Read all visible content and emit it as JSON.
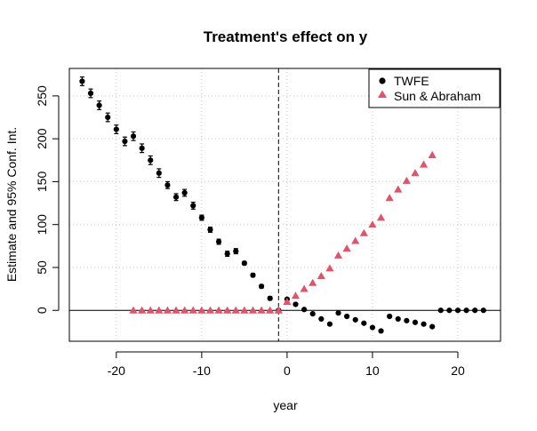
{
  "chart_data": {
    "type": "scatter",
    "title": "Treatment's effect on y",
    "xlabel": "year",
    "ylabel": "Estimate and 95% Conf. Int.",
    "xlim": [
      -25.5,
      25.0
    ],
    "ylim": [
      -36,
      282
    ],
    "x_ticks": [
      -20,
      -10,
      0,
      10,
      20
    ],
    "x_tick_labels": [
      "-20",
      "-10",
      "0",
      "10",
      "20"
    ],
    "y_ticks": [
      0,
      50,
      100,
      150,
      200,
      250
    ],
    "y_tick_labels": [
      "0",
      "50",
      "100",
      "150",
      "200",
      "250"
    ],
    "grid": true,
    "reference_vline": -1,
    "reference_hline": 0,
    "legend_position": "top-right",
    "series": [
      {
        "name": "TWFE",
        "marker": "circle",
        "color": "#000000",
        "points": [
          {
            "x": -24,
            "y": 267,
            "lo": 262,
            "hi": 272
          },
          {
            "x": -23,
            "y": 253,
            "lo": 248,
            "hi": 258
          },
          {
            "x": -22,
            "y": 239,
            "lo": 234,
            "hi": 244
          },
          {
            "x": -21,
            "y": 225,
            "lo": 220,
            "hi": 230
          },
          {
            "x": -20,
            "y": 211,
            "lo": 206,
            "hi": 216
          },
          {
            "x": -19,
            "y": 197,
            "lo": 192,
            "hi": 202
          },
          {
            "x": -18,
            "y": 203,
            "lo": 198,
            "hi": 208
          },
          {
            "x": -17,
            "y": 189,
            "lo": 184,
            "hi": 194
          },
          {
            "x": -16,
            "y": 175,
            "lo": 170,
            "hi": 180
          },
          {
            "x": -15,
            "y": 160,
            "lo": 155,
            "hi": 165
          },
          {
            "x": -14,
            "y": 146,
            "lo": 142,
            "hi": 150
          },
          {
            "x": -13,
            "y": 132,
            "lo": 128,
            "hi": 136
          },
          {
            "x": -12,
            "y": 137,
            "lo": 133,
            "hi": 141
          },
          {
            "x": -11,
            "y": 122,
            "lo": 118,
            "hi": 126
          },
          {
            "x": -10,
            "y": 108,
            "lo": 105,
            "hi": 111
          },
          {
            "x": -9,
            "y": 94,
            "lo": 91,
            "hi": 97
          },
          {
            "x": -8,
            "y": 80,
            "lo": 77,
            "hi": 83
          },
          {
            "x": -7,
            "y": 66,
            "lo": 63,
            "hi": 69
          },
          {
            "x": -6,
            "y": 69,
            "lo": 66,
            "hi": 72
          },
          {
            "x": -5,
            "y": 55,
            "lo": 53,
            "hi": 57
          },
          {
            "x": -4,
            "y": 41,
            "lo": 39,
            "hi": 43
          },
          {
            "x": -3,
            "y": 28,
            "lo": 26,
            "hi": 30
          },
          {
            "x": -2,
            "y": 14,
            "lo": 12,
            "hi": 16
          },
          {
            "x": -1,
            "y": 0,
            "lo": 0,
            "hi": 0
          },
          {
            "x": 0,
            "y": 13
          },
          {
            "x": 1,
            "y": 7
          },
          {
            "x": 2,
            "y": 1
          },
          {
            "x": 3,
            "y": -4
          },
          {
            "x": 4,
            "y": -10
          },
          {
            "x": 5,
            "y": -16
          },
          {
            "x": 6,
            "y": -3
          },
          {
            "x": 7,
            "y": -7
          },
          {
            "x": 8,
            "y": -11
          },
          {
            "x": 9,
            "y": -15
          },
          {
            "x": 10,
            "y": -20
          },
          {
            "x": 11,
            "y": -24
          },
          {
            "x": 12,
            "y": -7
          },
          {
            "x": 13,
            "y": -10
          },
          {
            "x": 14,
            "y": -12
          },
          {
            "x": 15,
            "y": -14
          },
          {
            "x": 16,
            "y": -16
          },
          {
            "x": 17,
            "y": -19
          },
          {
            "x": 18,
            "y": 0
          },
          {
            "x": 19,
            "y": 0
          },
          {
            "x": 20,
            "y": 0
          },
          {
            "x": 21,
            "y": 0
          },
          {
            "x": 22,
            "y": 0
          },
          {
            "x": 23,
            "y": 0
          }
        ]
      },
      {
        "name": "Sun & Abraham",
        "marker": "triangle",
        "color": "#DF536B",
        "points": [
          {
            "x": -18,
            "y": 0
          },
          {
            "x": -17,
            "y": 0
          },
          {
            "x": -16,
            "y": 0
          },
          {
            "x": -15,
            "y": 0
          },
          {
            "x": -14,
            "y": 0
          },
          {
            "x": -13,
            "y": 0
          },
          {
            "x": -12,
            "y": 0
          },
          {
            "x": -11,
            "y": 0
          },
          {
            "x": -10,
            "y": 0
          },
          {
            "x": -9,
            "y": 0
          },
          {
            "x": -8,
            "y": 0
          },
          {
            "x": -7,
            "y": 0
          },
          {
            "x": -6,
            "y": 0
          },
          {
            "x": -5,
            "y": 0
          },
          {
            "x": -4,
            "y": 0
          },
          {
            "x": -3,
            "y": 0
          },
          {
            "x": -2,
            "y": 0
          },
          {
            "x": -1,
            "y": 0
          },
          {
            "x": 0,
            "y": 10
          },
          {
            "x": 1,
            "y": 17
          },
          {
            "x": 2,
            "y": 25
          },
          {
            "x": 3,
            "y": 32
          },
          {
            "x": 4,
            "y": 40
          },
          {
            "x": 5,
            "y": 49
          },
          {
            "x": 6,
            "y": 64
          },
          {
            "x": 7,
            "y": 72
          },
          {
            "x": 8,
            "y": 81
          },
          {
            "x": 9,
            "y": 90
          },
          {
            "x": 10,
            "y": 100
          },
          {
            "x": 11,
            "y": 108
          },
          {
            "x": 12,
            "y": 131
          },
          {
            "x": 13,
            "y": 141
          },
          {
            "x": 14,
            "y": 151
          },
          {
            "x": 15,
            "y": 160
          },
          {
            "x": 16,
            "y": 170
          },
          {
            "x": 17,
            "y": 181
          }
        ]
      }
    ]
  }
}
